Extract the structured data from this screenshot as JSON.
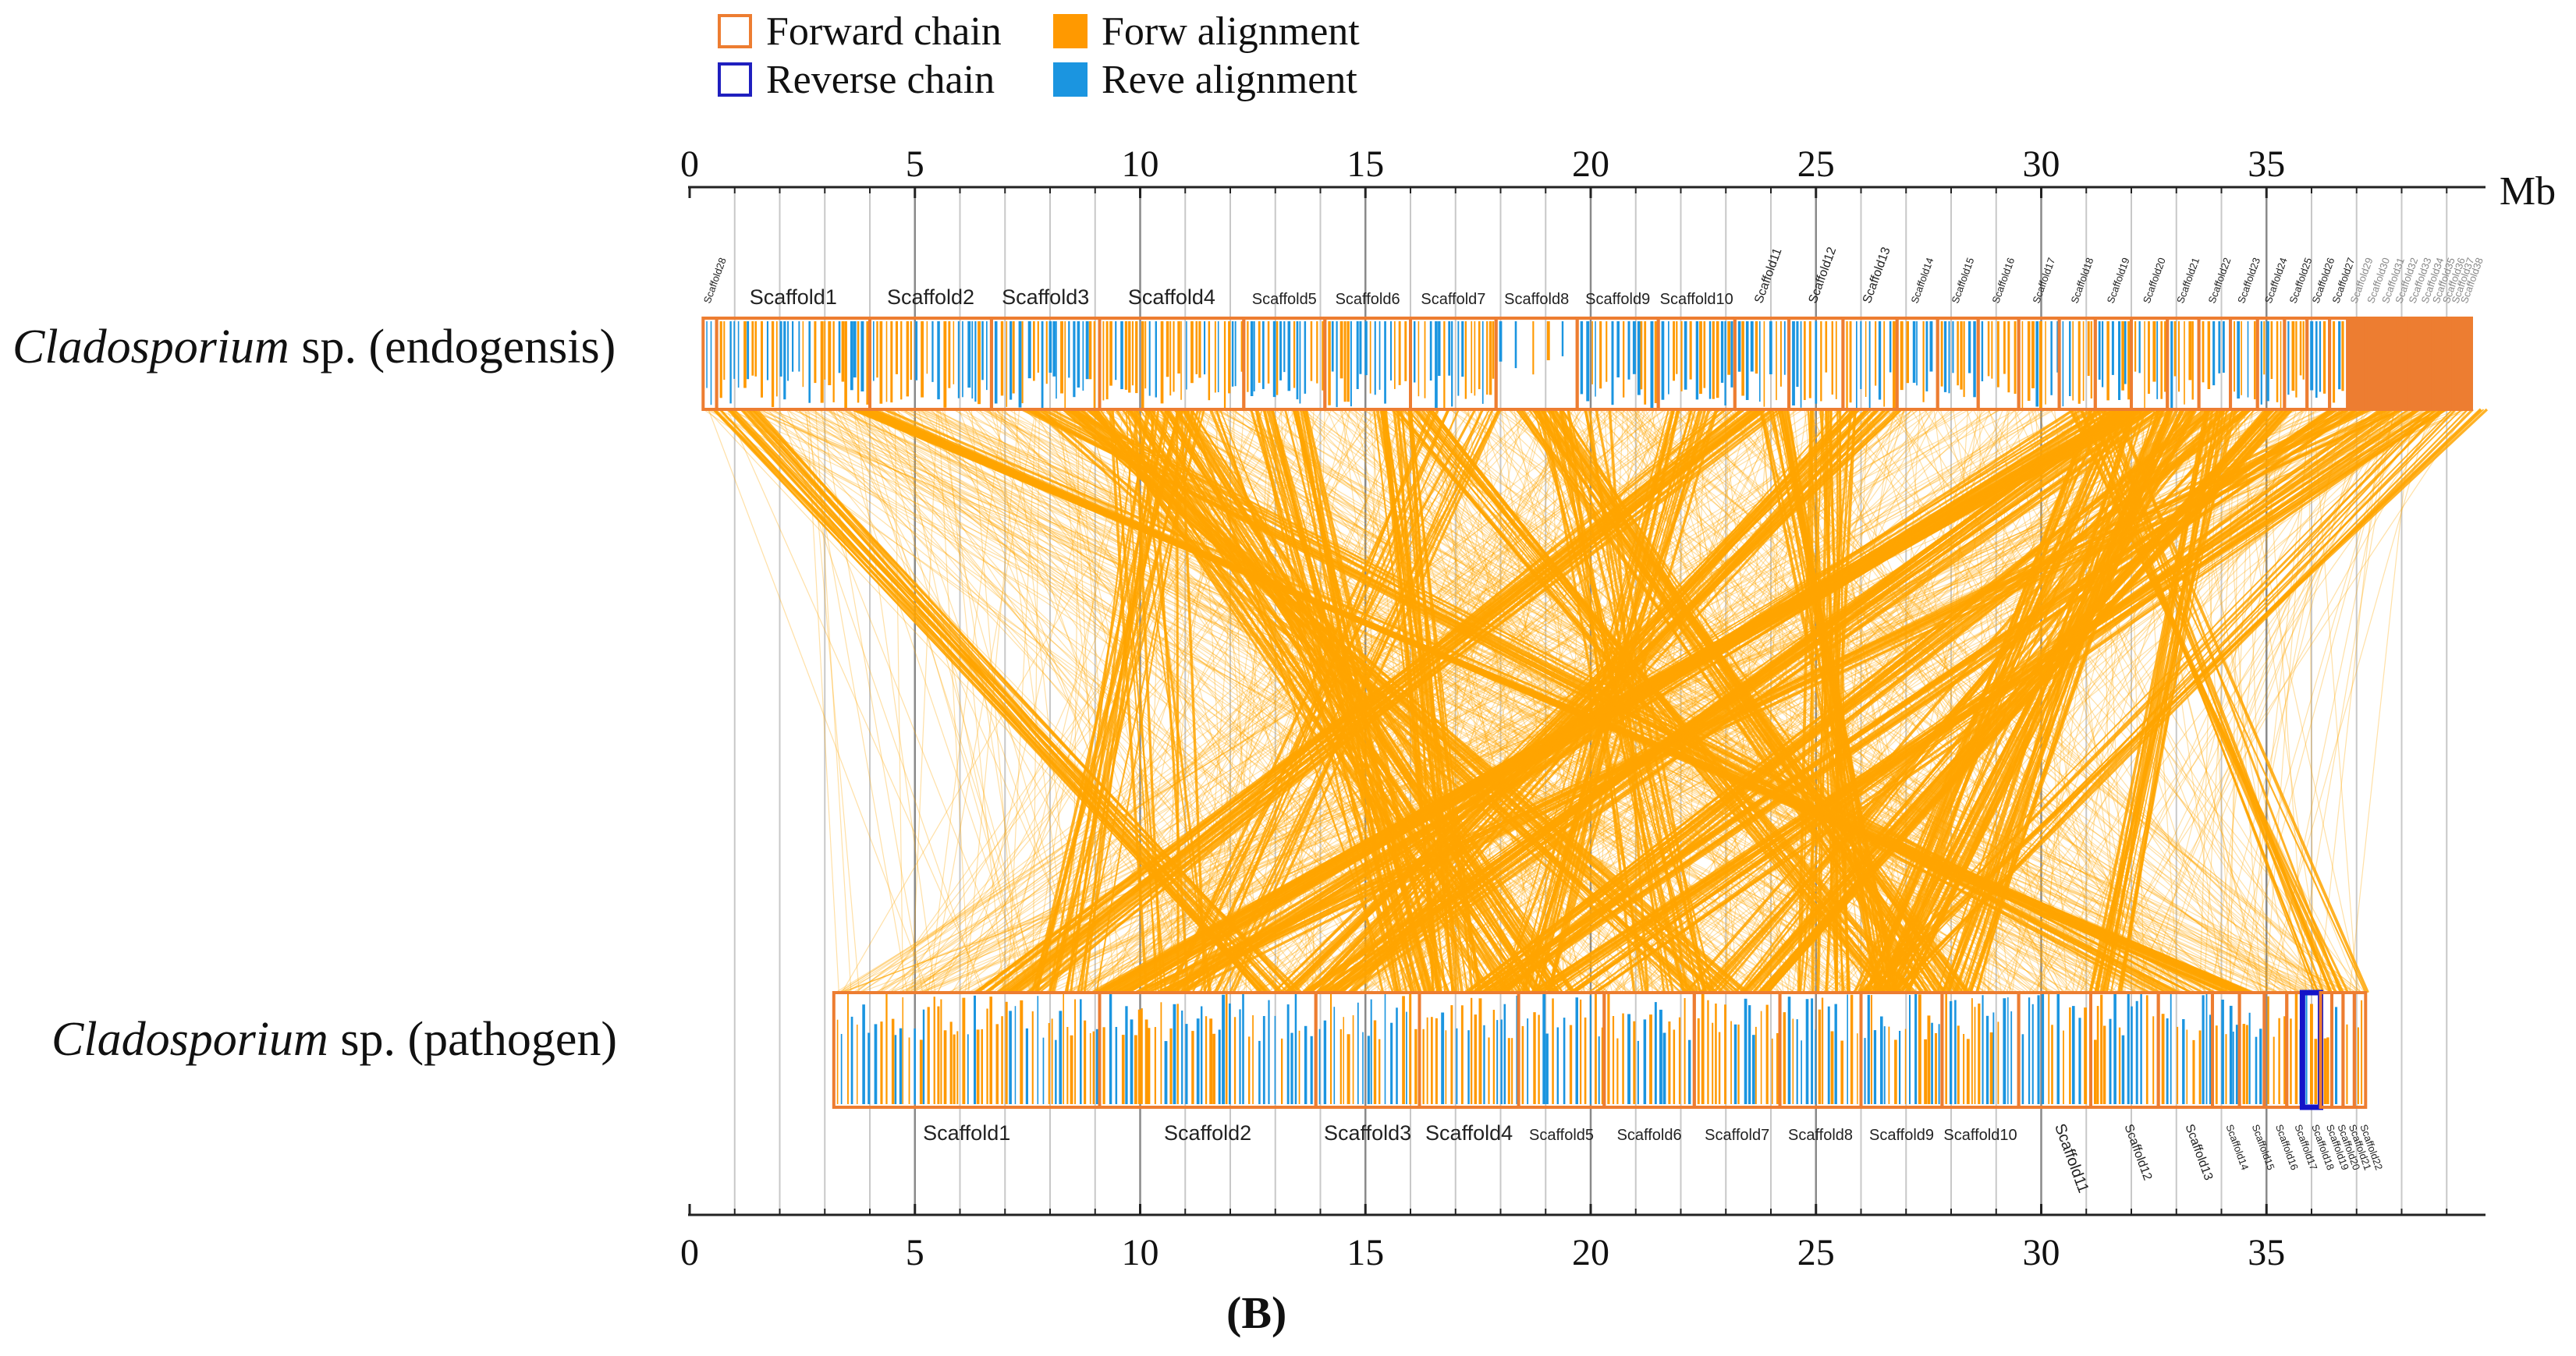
{
  "legend": [
    {
      "label": "Forward chain",
      "style": "outline",
      "color": "#ED7D31"
    },
    {
      "label": "Forw alignment",
      "style": "fill",
      "color": "#FF9900"
    },
    {
      "label": "Reverse chain",
      "style": "outline",
      "color": "#1F1FBF"
    },
    {
      "label": "Reve alignment",
      "style": "fill",
      "color": "#1B95E0"
    }
  ],
  "axis": {
    "unit": "Mb",
    "min": 0,
    "max": 40,
    "ticks": [
      "0",
      "5",
      "10",
      "15",
      "20",
      "25",
      "30",
      "35"
    ]
  },
  "colors": {
    "chain_outline": "#ED7D31",
    "alignment_orange": "#FF9900",
    "alignment_blue": "#1B95E0",
    "link": "#FFA500",
    "reverse_chain": "#1414C8",
    "grid": "#9a9a9a",
    "axis": "#222222"
  },
  "top_genome": {
    "name_italic": "Cladosporium",
    "name_rest": " sp. (endogensis)",
    "scaffolds": [
      {
        "label": "Scaffold28",
        "start": 0.3,
        "end": 0.6
      },
      {
        "label": "Scaffold1",
        "start": 0.6,
        "end": 4.0
      },
      {
        "label": "Scaffold2",
        "start": 4.0,
        "end": 6.7
      },
      {
        "label": "Scaffold3",
        "start": 6.7,
        "end": 9.1
      },
      {
        "label": "Scaffold4",
        "start": 9.1,
        "end": 12.3
      },
      {
        "label": "Scaffold5",
        "start": 12.3,
        "end": 14.1
      },
      {
        "label": "Scaffold6",
        "start": 14.1,
        "end": 16.0
      },
      {
        "label": "Scaffold7",
        "start": 16.0,
        "end": 17.9
      },
      {
        "label": "Scaffold8",
        "start": 17.9,
        "end": 19.7
      },
      {
        "label": "Scaffold9",
        "start": 19.7,
        "end": 21.5
      },
      {
        "label": "Scaffold10",
        "start": 21.5,
        "end": 23.2
      },
      {
        "label": "Scaffold11",
        "start": 23.2,
        "end": 24.4
      },
      {
        "label": "Scaffold12",
        "start": 24.4,
        "end": 25.6
      },
      {
        "label": "Scaffold13",
        "start": 25.6,
        "end": 26.8
      },
      {
        "label": "Scaffold14",
        "start": 26.8,
        "end": 27.7
      },
      {
        "label": "Scaffold15",
        "start": 27.7,
        "end": 28.6
      },
      {
        "label": "Scaffold16",
        "start": 28.6,
        "end": 29.5
      },
      {
        "label": "Scaffold17",
        "start": 29.5,
        "end": 30.4
      },
      {
        "label": "Scaffold18",
        "start": 30.4,
        "end": 31.2
      },
      {
        "label": "Scaffold19",
        "start": 31.2,
        "end": 32.0
      },
      {
        "label": "Scaffold20",
        "start": 32.0,
        "end": 32.8
      },
      {
        "label": "Scaffold21",
        "start": 32.8,
        "end": 33.5
      },
      {
        "label": "Scaffold22",
        "start": 33.5,
        "end": 34.2
      },
      {
        "label": "Scaffold23",
        "start": 34.2,
        "end": 34.8
      },
      {
        "label": "Scaffold24",
        "start": 34.8,
        "end": 35.4
      },
      {
        "label": "Scaffold25",
        "start": 35.4,
        "end": 35.9
      },
      {
        "label": "Scaffold26",
        "start": 35.9,
        "end": 36.4
      },
      {
        "label": "Scaffold27",
        "start": 36.4,
        "end": 36.8
      },
      {
        "label": "Scaffold29",
        "start": 36.8,
        "end": 37.2
      },
      {
        "label": "Scaffold30",
        "start": 37.2,
        "end": 37.55
      },
      {
        "label": "Scaffold31",
        "start": 37.55,
        "end": 37.85
      },
      {
        "label": "Scaffold32",
        "start": 37.85,
        "end": 38.15
      },
      {
        "label": "Scaffold33",
        "start": 38.15,
        "end": 38.45
      },
      {
        "label": "Scaffold34",
        "start": 38.45,
        "end": 38.7
      },
      {
        "label": "Scaffold35",
        "start": 38.7,
        "end": 38.95
      },
      {
        "label": "Scaffold36",
        "start": 38.95,
        "end": 39.15
      },
      {
        "label": "Scaffold37",
        "start": 39.15,
        "end": 39.35
      },
      {
        "label": "Scaffold38",
        "start": 39.35,
        "end": 39.55
      }
    ]
  },
  "bottom_genome": {
    "name_italic": "Cladosporium",
    "name_rest": " sp. (pathogen)",
    "scaffolds": [
      {
        "label": "Scaffold1",
        "start": 3.2,
        "end": 9.1
      },
      {
        "label": "Scaffold2",
        "start": 9.1,
        "end": 13.9
      },
      {
        "label": "Scaffold3",
        "start": 13.9,
        "end": 16.2
      },
      {
        "label": "Scaffold4",
        "start": 16.2,
        "end": 18.4
      },
      {
        "label": "Scaffold5",
        "start": 18.4,
        "end": 20.3
      },
      {
        "label": "Scaffold6",
        "start": 20.3,
        "end": 22.3
      },
      {
        "label": "Scaffold7",
        "start": 22.3,
        "end": 24.2
      },
      {
        "label": "Scaffold8",
        "start": 24.2,
        "end": 26.0
      },
      {
        "label": "Scaffold9",
        "start": 26.0,
        "end": 27.8
      },
      {
        "label": "Scaffold10",
        "start": 27.8,
        "end": 29.5
      },
      {
        "label": "Scaffold11",
        "start": 29.5,
        "end": 31.1
      },
      {
        "label": "Scaffold12",
        "start": 31.1,
        "end": 32.6
      },
      {
        "label": "Scaffold13",
        "start": 32.6,
        "end": 33.8
      },
      {
        "label": "Scaffold14",
        "start": 33.8,
        "end": 34.4
      },
      {
        "label": "Scaffold15",
        "start": 34.4,
        "end": 34.95
      },
      {
        "label": "Scaffold16",
        "start": 34.95,
        "end": 35.45
      },
      {
        "label": "Scaffold17",
        "start": 35.45,
        "end": 35.8
      },
      {
        "label": "Scaffold18",
        "start": 35.8,
        "end": 36.2
      },
      {
        "label": "Scaffold19",
        "start": 36.2,
        "end": 36.45
      },
      {
        "label": "Scaffold20",
        "start": 36.45,
        "end": 36.7
      },
      {
        "label": "Scaffold21",
        "start": 36.7,
        "end": 36.95
      },
      {
        "label": "Scaffold22",
        "start": 36.95,
        "end": 37.2
      }
    ]
  },
  "panel_label": "(B)"
}
